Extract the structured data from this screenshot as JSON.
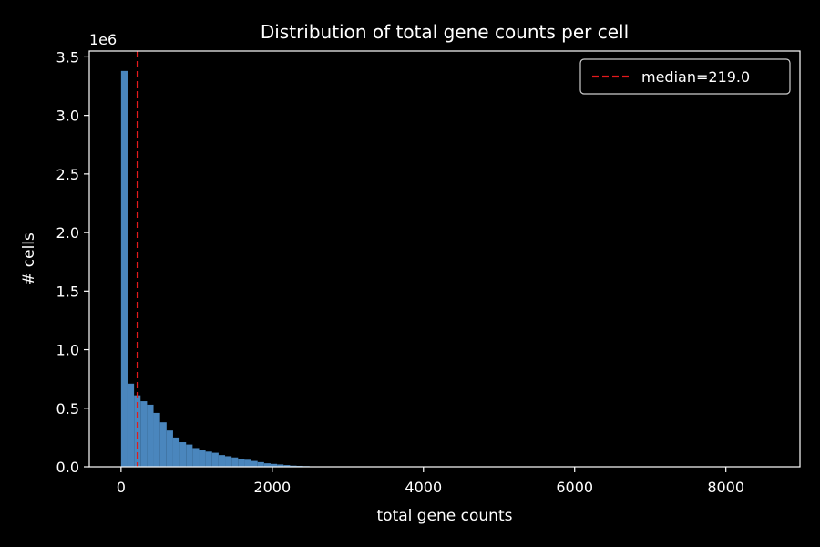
{
  "chart_data": {
    "type": "bar",
    "title": "Distribution of total gene counts per cell",
    "xlabel": "total gene counts",
    "ylabel": "# cells",
    "y_offset_label": "1e6",
    "xlim": [
      -420,
      8980
    ],
    "ylim": [
      0,
      3.55
    ],
    "y_scale_unit": 1000000,
    "x_ticks": [
      0,
      2000,
      4000,
      6000,
      8000
    ],
    "x_tick_labels": [
      "0",
      "2000",
      "4000",
      "6000",
      "8000"
    ],
    "y_ticks": [
      0,
      0.5,
      1.0,
      1.5,
      2.0,
      2.5,
      3.0,
      3.5
    ],
    "y_tick_labels": [
      "0.0",
      "0.5",
      "1.0",
      "1.5",
      "2.0",
      "2.5",
      "3.0",
      "3.5"
    ],
    "bin_edges_start": 0,
    "bin_width": 86,
    "values": [
      3.38,
      0.71,
      0.61,
      0.56,
      0.53,
      0.46,
      0.38,
      0.31,
      0.25,
      0.21,
      0.19,
      0.16,
      0.14,
      0.13,
      0.12,
      0.1,
      0.09,
      0.08,
      0.07,
      0.06,
      0.05,
      0.04,
      0.03,
      0.025,
      0.02,
      0.015,
      0.01,
      0.008,
      0.006,
      0.004,
      0.003,
      0.002,
      0.0015,
      0.001,
      0.0008,
      0.0006,
      0.0004,
      0.0003,
      0.0002,
      0.0001
    ],
    "median": 219.0,
    "legend": {
      "label": "median=219.0",
      "position": "top-right"
    },
    "grid": false,
    "colors": {
      "bars": "#4a86bd",
      "median_line": "#e41a1c",
      "background": "#000000",
      "axes": "#ffffff"
    }
  }
}
